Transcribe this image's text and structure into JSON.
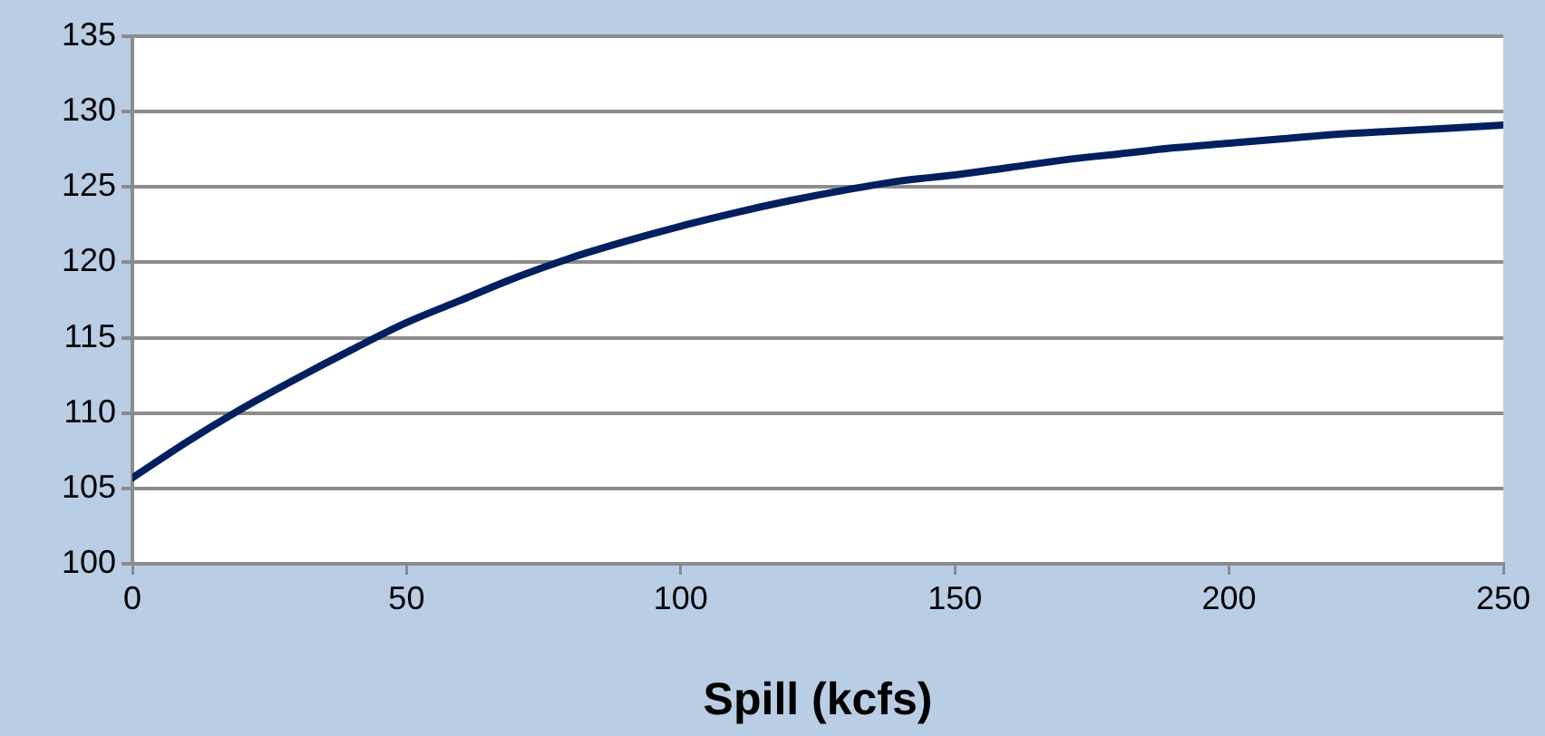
{
  "chart_data": {
    "type": "line",
    "xlabel": "Spill (kcfs)",
    "x": [
      0,
      10,
      20,
      30,
      40,
      50,
      60,
      70,
      80,
      90,
      100,
      110,
      120,
      130,
      140,
      150,
      160,
      170,
      180,
      190,
      200,
      210,
      220,
      230,
      240,
      250
    ],
    "series": [
      {
        "color": "#002060",
        "values": [
          105.7,
          108.1,
          110.3,
          112.3,
          114.2,
          116.0,
          117.5,
          119.0,
          120.3,
          121.4,
          122.4,
          123.3,
          124.1,
          124.8,
          125.4,
          125.8,
          126.3,
          126.8,
          127.2,
          127.6,
          127.9,
          128.2,
          128.5,
          128.7,
          128.9,
          129.1
        ]
      }
    ],
    "xlim": [
      0,
      250
    ],
    "xticks": [
      0,
      50,
      100,
      150,
      200,
      250
    ],
    "ylim": [
      100,
      135
    ],
    "yticks": [
      100,
      105,
      110,
      115,
      120,
      125,
      130,
      135
    ],
    "grid": "y",
    "legend": false,
    "marker": "none",
    "line_style": "solid"
  }
}
